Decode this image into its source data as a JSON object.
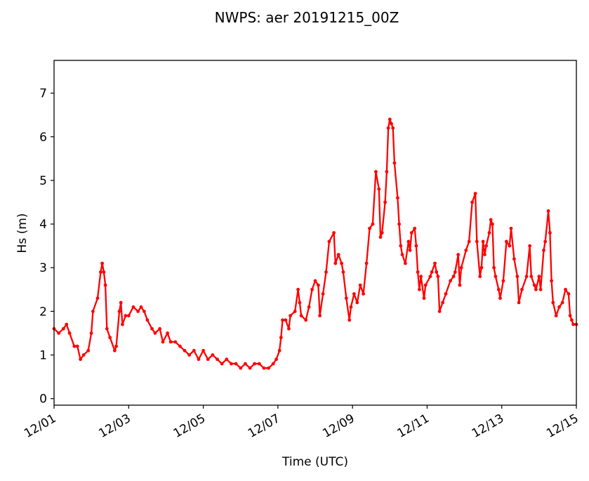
{
  "chart_data": {
    "type": "line",
    "title": "NWPS: aer 20191215_00Z",
    "xlabel": "Time (UTC)",
    "ylabel": "Hs (m)",
    "x_units": "hours since 12/01 00Z",
    "xlim": [
      0,
      336
    ],
    "ylim": [
      -0.15,
      7.75
    ],
    "xticks": [
      {
        "value": 0,
        "label": "12/01"
      },
      {
        "value": 48,
        "label": "12/03"
      },
      {
        "value": 96,
        "label": "12/05"
      },
      {
        "value": 144,
        "label": "12/07"
      },
      {
        "value": 192,
        "label": "12/09"
      },
      {
        "value": 240,
        "label": "12/11"
      },
      {
        "value": 288,
        "label": "12/13"
      },
      {
        "value": 336,
        "label": "12/15"
      }
    ],
    "yticks": [
      {
        "value": 0,
        "label": "0"
      },
      {
        "value": 1,
        "label": "1"
      },
      {
        "value": 2,
        "label": "2"
      },
      {
        "value": 3,
        "label": "3"
      },
      {
        "value": 4,
        "label": "4"
      },
      {
        "value": 5,
        "label": "5"
      },
      {
        "value": 6,
        "label": "6"
      },
      {
        "value": 7,
        "label": "7"
      }
    ],
    "grid": false,
    "series": [
      {
        "name": "Hs",
        "color": "#ff0000",
        "marker": "dot",
        "x": [
          0,
          3,
          6,
          8,
          10,
          13,
          15,
          17,
          19,
          22,
          24,
          25,
          28,
          30,
          31,
          32,
          33,
          34,
          36,
          39,
          40,
          42,
          43,
          44,
          46,
          48,
          51,
          54,
          56,
          58,
          60,
          63,
          65,
          68,
          70,
          73,
          75,
          78,
          81,
          84,
          87,
          90,
          93,
          96,
          99,
          102,
          105,
          108,
          111,
          114,
          117,
          120,
          123,
          126,
          129,
          132,
          135,
          138,
          141,
          143,
          145,
          146,
          147,
          149,
          151,
          152,
          155,
          157,
          158,
          159,
          162,
          164,
          166,
          168,
          170,
          171,
          173,
          175,
          177,
          180,
          181,
          183,
          185,
          186,
          188,
          190,
          191,
          193,
          195,
          197,
          199,
          201,
          203,
          205,
          207,
          209,
          210,
          211,
          213,
          214,
          215,
          216,
          217,
          218,
          219,
          221,
          222,
          223,
          224,
          226,
          228,
          229,
          230,
          232,
          233,
          234,
          235,
          236,
          238,
          239,
          242,
          243,
          245,
          246,
          247,
          248,
          250,
          252,
          255,
          257,
          258,
          260,
          261,
          262,
          265,
          267,
          269,
          271,
          272,
          274,
          275,
          276,
          277,
          278,
          280,
          281,
          282,
          283,
          284,
          286,
          287,
          289,
          291,
          293,
          294,
          296,
          298,
          299,
          301,
          304,
          306,
          307,
          309,
          310,
          312,
          313,
          315,
          316,
          318,
          319,
          320,
          321,
          323,
          325,
          327,
          329,
          331,
          332,
          333,
          334,
          336
        ],
        "values": [
          1.6,
          1.5,
          1.6,
          1.7,
          1.5,
          1.2,
          1.2,
          0.9,
          1.0,
          1.1,
          1.5,
          2.0,
          2.3,
          2.9,
          3.1,
          2.9,
          2.6,
          1.6,
          1.4,
          1.1,
          1.2,
          2.0,
          2.2,
          1.7,
          1.9,
          1.9,
          2.1,
          2.0,
          2.1,
          2.0,
          1.8,
          1.6,
          1.5,
          1.6,
          1.3,
          1.5,
          1.3,
          1.3,
          1.2,
          1.1,
          1.0,
          1.1,
          0.9,
          1.1,
          0.9,
          1.0,
          0.9,
          0.8,
          0.9,
          0.8,
          0.8,
          0.7,
          0.8,
          0.7,
          0.8,
          0.8,
          0.7,
          0.7,
          0.8,
          0.9,
          1.1,
          1.4,
          1.8,
          1.8,
          1.6,
          1.9,
          2.0,
          2.5,
          2.2,
          1.9,
          1.8,
          2.1,
          2.5,
          2.7,
          2.6,
          1.9,
          2.4,
          2.9,
          3.6,
          3.8,
          3.1,
          3.3,
          3.1,
          2.9,
          2.3,
          1.8,
          2.1,
          2.4,
          2.2,
          2.6,
          2.4,
          3.1,
          3.9,
          4.0,
          5.2,
          4.8,
          3.7,
          3.8,
          4.5,
          5.2,
          6.2,
          6.4,
          6.3,
          6.2,
          5.4,
          4.6,
          4.0,
          3.5,
          3.3,
          3.1,
          3.6,
          3.4,
          3.8,
          3.9,
          3.5,
          2.9,
          2.5,
          2.8,
          2.3,
          2.6,
          2.8,
          2.9,
          3.1,
          2.9,
          2.8,
          2.0,
          2.2,
          2.4,
          2.7,
          2.8,
          2.9,
          3.3,
          2.6,
          3.0,
          3.4,
          3.6,
          4.5,
          4.7,
          3.6,
          2.8,
          3.0,
          3.6,
          3.3,
          3.5,
          3.8,
          4.1,
          4.0,
          3.0,
          2.8,
          2.5,
          2.3,
          2.7,
          3.6,
          3.5,
          3.9,
          3.2,
          2.8,
          2.2,
          2.5,
          2.8,
          3.5,
          2.8,
          2.6,
          2.5,
          2.8,
          2.5,
          3.4,
          3.6,
          4.3,
          3.8,
          2.7,
          2.2,
          1.9,
          2.1,
          2.2,
          2.5,
          2.4,
          1.9,
          1.8,
          1.7,
          1.7
        ]
      }
    ]
  }
}
